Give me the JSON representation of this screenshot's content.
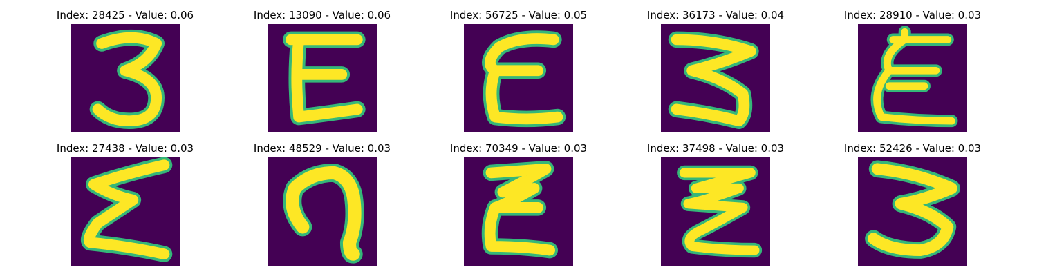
{
  "colormap": {
    "background": "#440154",
    "low": "#31688e",
    "mid": "#35b779",
    "high": "#fde725"
  },
  "panels": [
    {
      "title": "Index: 28425 - Value: 0.06",
      "glyph": "3"
    },
    {
      "title": "Index: 13090 - Value: 0.06",
      "glyph": "E"
    },
    {
      "title": "Index: 56725 - Value: 0.05",
      "glyph": "E"
    },
    {
      "title": "Index: 36173 - Value: 0.04",
      "glyph": "Z-S"
    },
    {
      "title": "Index: 28910 - Value: 0.03",
      "glyph": "E"
    },
    {
      "title": "Index: 27438 - Value: 0.03",
      "glyph": "Sigma"
    },
    {
      "title": "Index: 48529 - Value: 0.03",
      "glyph": "hook"
    },
    {
      "title": "Index: 70349 - Value: 0.03",
      "glyph": "E"
    },
    {
      "title": "Index: 37498 - Value: 0.03",
      "glyph": "Zigzag"
    },
    {
      "title": "Index: 52426 - Value: 0.03",
      "glyph": "3"
    }
  ]
}
